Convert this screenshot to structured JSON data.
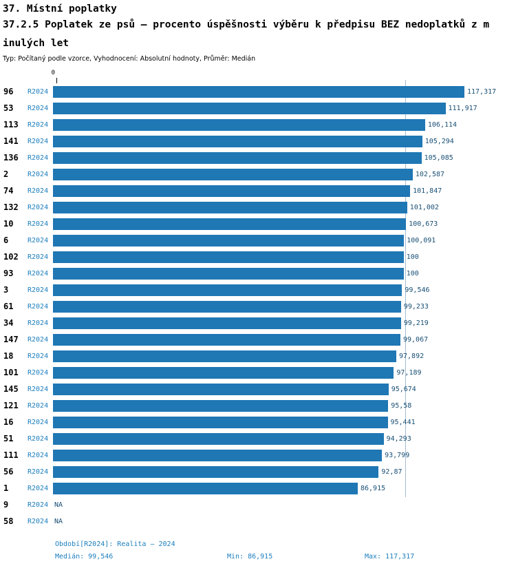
{
  "header": {
    "title": "37. Místní poplatky",
    "subtitle_line1": "37.2.5 Poplatek ze psů – procento úspěšnosti výběru k předpisu BEZ nedoplatků z m",
    "subtitle_line2": "inulých let",
    "meta": "Typ: Počítaný podle vzorce, Vyhodnocení: Absolutní hodnoty, Průměr: Medián"
  },
  "chart_data": {
    "type": "bar",
    "orientation": "horizontal",
    "title": "37.2.5 Poplatek ze psů – procento úspěšnosti výběru k předpisu BEZ nedoplatků z minulých let",
    "series_label": "R2024",
    "zero_label": "0",
    "categories": [
      "96",
      "53",
      "113",
      "141",
      "136",
      "2",
      "74",
      "132",
      "10",
      "6",
      "102",
      "93",
      "3",
      "61",
      "34",
      "147",
      "18",
      "101",
      "145",
      "121",
      "16",
      "51",
      "111",
      "56",
      "1",
      "9",
      "58"
    ],
    "values": [
      117.317,
      111.917,
      106.114,
      105.294,
      105.085,
      102.587,
      101.847,
      101.002,
      100.673,
      100.091,
      100,
      100,
      99.546,
      99.233,
      99.219,
      99.067,
      97.892,
      97.189,
      95.674,
      95.58,
      95.441,
      94.293,
      93.799,
      92.87,
      86.915,
      null,
      null
    ],
    "value_labels": [
      "117,317",
      "111,917",
      "106,114",
      "105,294",
      "105,085",
      "102,587",
      "101,847",
      "101,002",
      "100,673",
      "100,091",
      "100",
      "100",
      "99,546",
      "99,233",
      "99,219",
      "99,067",
      "97,892",
      "97,189",
      "95,674",
      "95,58",
      "95,441",
      "94,293",
      "93,799",
      "92,87",
      "86,915",
      "NA",
      "NA"
    ],
    "xlim": [
      0,
      117.317
    ],
    "median": 99.546,
    "min": 86.915,
    "max": 117.317,
    "grid": false,
    "legend": false
  },
  "footer": {
    "period_label": "Období[R2024]: Realita – 2024",
    "median_label": "Medián: 99,546",
    "min_label": "Min: 86,915",
    "max_label": "Max: 117,317"
  },
  "colors": {
    "bar": "#1F77B4",
    "accent_blue": "#1B7EBE",
    "value_text": "#174E74",
    "median_line": "#A3BBD0"
  }
}
